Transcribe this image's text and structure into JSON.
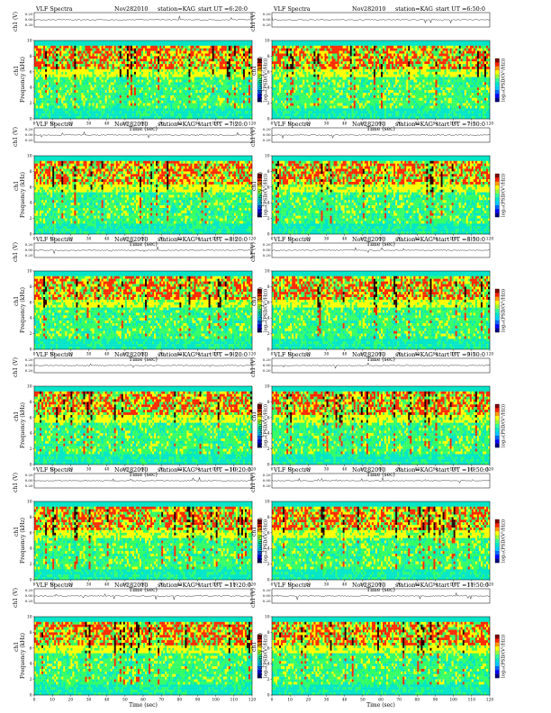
{
  "page": {
    "background": "#ffffff"
  },
  "colors": {
    "colormap": [
      "#00007f",
      "#0000ff",
      "#0066ff",
      "#00ccff",
      "#00e6cc",
      "#33ff99",
      "#99ff33",
      "#ffff00",
      "#ff9900",
      "#ff2200",
      "#7f0000"
    ],
    "spectrogram_palette": {
      "low": "#00e5c8",
      "mid": "#33ff66",
      "high_a": "#ffff00",
      "high_b": "#ff2a00",
      "dark": "#2a0000"
    },
    "waveform_line": "#000000"
  },
  "chart_data": [
    {
      "type": "heatmap",
      "header": {
        "left": "VLF Spectra",
        "date": "Nov282010",
        "station": "station=KAG",
        "start": "start  UT =6:20:0"
      },
      "xlabel": "Time (sec)",
      "ylabel": "Frequency (kHz)",
      "ch_label": "ch1",
      "wave_ylabel": "ch1 (V)",
      "wave_yticks": [
        "0.20",
        "0.00",
        "0.20"
      ],
      "colorbar_label": "log₁₀(PSD/(V²/Hz))",
      "xticks": [
        "0",
        "10",
        "20",
        "30",
        "40",
        "50",
        "60",
        "70",
        "80",
        "90",
        "100",
        "110",
        "120"
      ],
      "yticks": [
        "0",
        "2",
        "4",
        "6",
        "8",
        "10"
      ],
      "xlim": [
        0,
        120
      ],
      "ylim": [
        0,
        10
      ]
    },
    {
      "type": "heatmap",
      "header": {
        "left": "VLF Spectra",
        "date": "Nov282010",
        "station": "station=KAG",
        "start": "start  UT =6:50:0"
      },
      "xlabel": "Time (sec)",
      "ylabel": "Frequency (kHz)",
      "ch_label": "ch1",
      "wave_ylabel": "ch1 (V)",
      "wave_yticks": [
        "0.20",
        "0.00",
        "0.20"
      ],
      "colorbar_label": "log₁₀(PSD/(V²/Hz))",
      "xticks": [
        "0",
        "10",
        "20",
        "30",
        "40",
        "50",
        "60",
        "70",
        "80",
        "90",
        "100",
        "110",
        "120"
      ],
      "yticks": [
        "0",
        "2",
        "4",
        "6",
        "8",
        "10"
      ],
      "xlim": [
        0,
        120
      ],
      "ylim": [
        0,
        10
      ]
    },
    {
      "type": "heatmap",
      "header": {
        "left": "VLF Spectra",
        "date": "Nov282010",
        "station": "station=KAG",
        "start": "start  UT =7:20:0"
      },
      "xlabel": "Time (sec)",
      "ylabel": "Frequency (kHz)",
      "ch_label": "ch1",
      "wave_ylabel": "ch1 (V)",
      "wave_yticks": [
        "0.20",
        "0.00",
        "0.20"
      ],
      "colorbar_label": "log₁₀(PSD/(V²/Hz))",
      "xticks": [
        "0",
        "10",
        "20",
        "30",
        "40",
        "50",
        "60",
        "70",
        "80",
        "90",
        "100",
        "110",
        "120"
      ],
      "yticks": [
        "0",
        "2",
        "4",
        "6",
        "8",
        "10"
      ],
      "xlim": [
        0,
        120
      ],
      "ylim": [
        0,
        10
      ]
    },
    {
      "type": "heatmap",
      "header": {
        "left": "VLF Spectra",
        "date": "Nov282010",
        "station": "station=KAG",
        "start": "start  UT =7:50:0"
      },
      "xlabel": "Time (sec)",
      "ylabel": "Frequency (kHz)",
      "ch_label": "ch1",
      "wave_ylabel": "ch1 (V)",
      "wave_yticks": [
        "0.20",
        "0.00",
        "0.20"
      ],
      "colorbar_label": "log₁₀(PSD/(V²/Hz))",
      "xticks": [
        "0",
        "10",
        "20",
        "30",
        "40",
        "50",
        "60",
        "70",
        "80",
        "90",
        "100",
        "110",
        "120"
      ],
      "yticks": [
        "0",
        "2",
        "4",
        "6",
        "8",
        "10"
      ],
      "xlim": [
        0,
        120
      ],
      "ylim": [
        0,
        10
      ]
    },
    {
      "type": "heatmap",
      "header": {
        "left": "VLF Spectra",
        "date": "Nov282010",
        "station": "station=KAG",
        "start": "start  UT =8:20:0"
      },
      "xlabel": "Time (sec)",
      "ylabel": "Frequency (kHz)",
      "ch_label": "ch1",
      "wave_ylabel": "ch1 (V)",
      "wave_yticks": [
        "0.20",
        "0.00",
        "0.20"
      ],
      "colorbar_label": "log₁₀(PSD/(V²/Hz))",
      "xticks": [
        "0",
        "10",
        "20",
        "30",
        "40",
        "50",
        "60",
        "70",
        "80",
        "90",
        "100",
        "110",
        "120"
      ],
      "yticks": [
        "0",
        "2",
        "4",
        "6",
        "8",
        "10"
      ],
      "xlim": [
        0,
        120
      ],
      "ylim": [
        0,
        10
      ]
    },
    {
      "type": "heatmap",
      "header": {
        "left": "VLF Spectra",
        "date": "Nov282010",
        "station": "station=KAG",
        "start": "start  UT =8:50:0"
      },
      "xlabel": "Time (sec)",
      "ylabel": "Frequency (kHz)",
      "ch_label": "ch1",
      "wave_ylabel": "ch1 (V)",
      "wave_yticks": [
        "0.20",
        "0.00",
        "0.20"
      ],
      "colorbar_label": "log₁₀(PSD/(V²/Hz))",
      "xticks": [
        "0",
        "10",
        "20",
        "30",
        "40",
        "50",
        "60",
        "70",
        "80",
        "90",
        "100",
        "110",
        "120"
      ],
      "yticks": [
        "0",
        "2",
        "4",
        "6",
        "8",
        "10"
      ],
      "xlim": [
        0,
        120
      ],
      "ylim": [
        0,
        10
      ]
    },
    {
      "type": "heatmap",
      "header": {
        "left": "VLF Spectra",
        "date": "Nov282010",
        "station": "station=KAG",
        "start": "start  UT =9:20:0"
      },
      "xlabel": "Time (sec)",
      "ylabel": "Frequency (kHz)",
      "ch_label": "ch1",
      "wave_ylabel": "ch1 (V)",
      "wave_yticks": [
        "0.20",
        "0.00",
        "0.20"
      ],
      "colorbar_label": "log₁₀(PSD/(V²/Hz))",
      "xticks": [
        "0",
        "10",
        "20",
        "30",
        "40",
        "50",
        "60",
        "70",
        "80",
        "90",
        "100",
        "110",
        "120"
      ],
      "yticks": [
        "0",
        "2",
        "4",
        "6",
        "8",
        "10"
      ],
      "xlim": [
        0,
        120
      ],
      "ylim": [
        0,
        10
      ]
    },
    {
      "type": "heatmap",
      "header": {
        "left": "VLF Spectra",
        "date": "Nov282010",
        "station": "station=KAG",
        "start": "start  UT =9:50:0"
      },
      "xlabel": "Time (sec)",
      "ylabel": "Frequency (kHz)",
      "ch_label": "ch1",
      "wave_ylabel": "ch1 (V)",
      "wave_yticks": [
        "0.20",
        "0.00",
        "0.20"
      ],
      "colorbar_label": "log₁₀(PSD/(V²/Hz))",
      "xticks": [
        "0",
        "10",
        "20",
        "30",
        "40",
        "50",
        "60",
        "70",
        "80",
        "90",
        "100",
        "110",
        "120"
      ],
      "yticks": [
        "0",
        "2",
        "4",
        "6",
        "8",
        "10"
      ],
      "xlim": [
        0,
        120
      ],
      "ylim": [
        0,
        10
      ]
    },
    {
      "type": "heatmap",
      "header": {
        "left": "VLF Spectra",
        "date": "Nov282010",
        "station": "station=KAG",
        "start": "start  UT =10:20:0"
      },
      "xlabel": "Time (sec)",
      "ylabel": "Frequency (kHz)",
      "ch_label": "ch1",
      "wave_ylabel": "ch1 (V)",
      "wave_yticks": [
        "0.20",
        "0.00",
        "0.20"
      ],
      "colorbar_label": "log₁₀(PSD/(V²/Hz))",
      "xticks": [
        "0",
        "10",
        "20",
        "30",
        "40",
        "50",
        "60",
        "70",
        "80",
        "90",
        "100",
        "110",
        "120"
      ],
      "yticks": [
        "0",
        "2",
        "4",
        "6",
        "8",
        "10"
      ],
      "xlim": [
        0,
        120
      ],
      "ylim": [
        0,
        10
      ]
    },
    {
      "type": "heatmap",
      "header": {
        "left": "VLF Spectra",
        "date": "Nov282010",
        "station": "station=KAG",
        "start": "start  UT =10:50:0"
      },
      "xlabel": "Time (sec)",
      "ylabel": "Frequency (kHz)",
      "ch_label": "ch1",
      "wave_ylabel": "ch1 (V)",
      "wave_yticks": [
        "0.20",
        "0.00",
        "0.20"
      ],
      "colorbar_label": "log₁₀(PSD/(V²/Hz))",
      "xticks": [
        "0",
        "10",
        "20",
        "30",
        "40",
        "50",
        "60",
        "70",
        "80",
        "90",
        "100",
        "110",
        "120"
      ],
      "yticks": [
        "0",
        "2",
        "4",
        "6",
        "8",
        "10"
      ],
      "xlim": [
        0,
        120
      ],
      "ylim": [
        0,
        10
      ]
    },
    {
      "type": "heatmap",
      "header": {
        "left": "VLF Spectra",
        "date": "Nov282010",
        "station": "station=KAG",
        "start": "start  UT =11:20:0"
      },
      "xlabel": "Time (sec)",
      "ylabel": "Frequency (kHz)",
      "ch_label": "ch1",
      "wave_ylabel": "ch1 (V)",
      "wave_yticks": [
        "0.20",
        "0.00",
        "0.20"
      ],
      "colorbar_label": "log₁₀(PSD/(V²/Hz))",
      "xticks": [
        "0",
        "10",
        "20",
        "30",
        "40",
        "50",
        "60",
        "70",
        "80",
        "90",
        "100",
        "110",
        "120"
      ],
      "yticks": [
        "0",
        "2",
        "4",
        "6",
        "8",
        "10"
      ],
      "xlim": [
        0,
        120
      ],
      "ylim": [
        0,
        10
      ]
    },
    {
      "type": "heatmap",
      "header": {
        "left": "VLF Spectra",
        "date": "Nov282010",
        "station": "station=KAG",
        "start": "start  UT =11:50:0"
      },
      "xlabel": "Time (sec)",
      "ylabel": "Frequency (kHz)",
      "ch_label": "ch1",
      "wave_ylabel": "ch1 (V)",
      "wave_yticks": [
        "0.20",
        "0.00",
        "0.20"
      ],
      "colorbar_label": "log₁₀(PSD/(V²/Hz))",
      "xticks": [
        "0",
        "10",
        "20",
        "30",
        "40",
        "50",
        "60",
        "70",
        "80",
        "90",
        "100",
        "110",
        "120"
      ],
      "yticks": [
        "0",
        "2",
        "4",
        "6",
        "8",
        "10"
      ],
      "xlim": [
        0,
        120
      ],
      "ylim": [
        0,
        10
      ]
    }
  ]
}
